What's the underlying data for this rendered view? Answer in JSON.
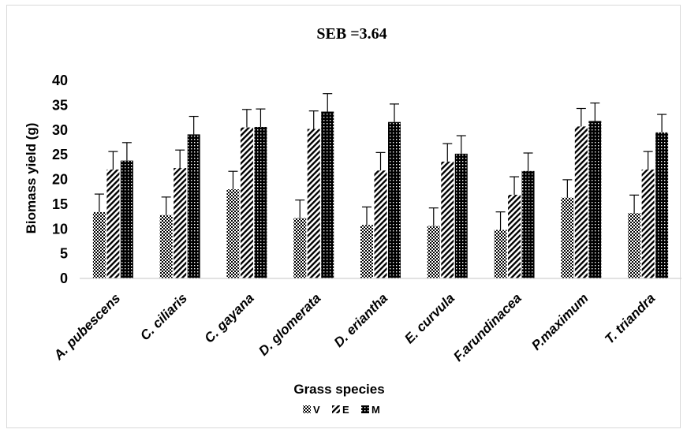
{
  "chart_data": {
    "type": "bar",
    "title": "SEB =3.64",
    "xlabel": "Grass species",
    "ylabel": "Biomass yield (g)",
    "ylim": [
      0,
      40
    ],
    "yticks": [
      0,
      5,
      10,
      15,
      20,
      25,
      30,
      35,
      40
    ],
    "grid": false,
    "legend_position": "bottom",
    "categories": [
      "A. pubescens",
      "C. ciliaris",
      "C. gayana",
      "D. glomerata",
      "D. eriantha",
      "E. curvula",
      "F.arundinacea",
      "P.maximum",
      "T. triandra"
    ],
    "error_bar": 3.64,
    "series": [
      {
        "name": "V",
        "pattern": "checker",
        "values": [
          13.4,
          12.8,
          18.0,
          12.2,
          10.8,
          10.6,
          9.8,
          16.3,
          13.2
        ]
      },
      {
        "name": "E",
        "pattern": "diagonal",
        "values": [
          22.0,
          22.3,
          30.5,
          30.2,
          21.8,
          23.6,
          16.9,
          30.7,
          22.0
        ]
      },
      {
        "name": "M",
        "pattern": "dots",
        "values": [
          23.8,
          29.1,
          30.6,
          33.7,
          31.6,
          25.2,
          21.7,
          31.8,
          29.5
        ]
      }
    ]
  }
}
